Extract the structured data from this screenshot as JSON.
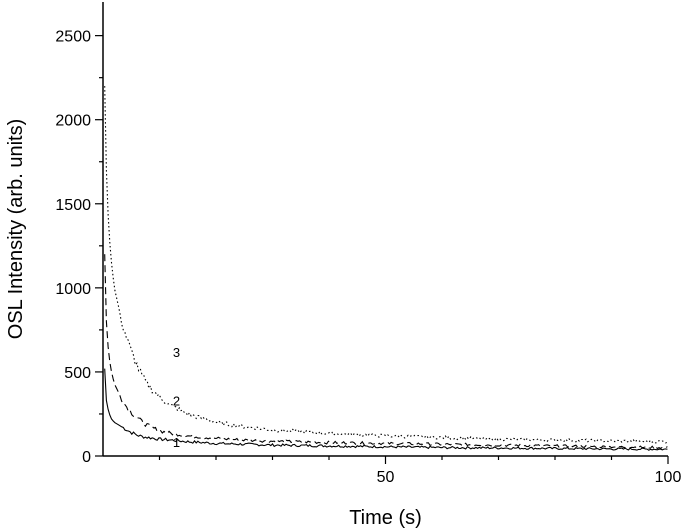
{
  "chart_data": {
    "type": "line",
    "xlabel": "Time (s)",
    "ylabel": "OSL Intensity (arb. units)",
    "xlim": [
      0,
      100
    ],
    "ylim": [
      0,
      2700
    ],
    "x_ticks": [
      50,
      100
    ],
    "x_tick_labels": [
      "50",
      "100"
    ],
    "y_ticks": [
      0,
      500,
      1000,
      1500,
      2000,
      2500
    ],
    "y_tick_labels": [
      "0",
      "500",
      "1000",
      "1500",
      "2000",
      "2500"
    ],
    "grid": false,
    "legend": "none",
    "series": [
      {
        "label": "1",
        "style": "solid",
        "label_at": [
          13,
          55
        ],
        "x": [
          0.3,
          0.6,
          1,
          1.5,
          2,
          3,
          4,
          5,
          6,
          7,
          8,
          10,
          12,
          15,
          20,
          25,
          30,
          40,
          50,
          60,
          70,
          80,
          90,
          100
        ],
        "y": [
          520,
          330,
          260,
          220,
          200,
          180,
          160,
          140,
          125,
          115,
          110,
          100,
          95,
          85,
          75,
          70,
          65,
          60,
          55,
          50,
          48,
          45,
          42,
          40
        ]
      },
      {
        "label": "2",
        "style": "dashed",
        "label_at": [
          13,
          300
        ],
        "x": [
          0.3,
          0.6,
          1,
          1.5,
          2,
          3,
          4,
          5,
          6,
          7,
          8,
          10,
          12,
          15,
          20,
          25,
          30,
          40,
          50,
          60,
          70,
          80,
          90,
          100
        ],
        "y": [
          1200,
          800,
          600,
          500,
          430,
          360,
          300,
          260,
          230,
          200,
          180,
          150,
          135,
          120,
          105,
          95,
          88,
          80,
          75,
          70,
          65,
          60,
          55,
          50
        ]
      },
      {
        "label": "3",
        "style": "dotted",
        "label_at": [
          13,
          590
        ],
        "x": [
          0.3,
          0.6,
          1,
          1.5,
          2,
          3,
          4,
          5,
          6,
          7,
          8,
          10,
          12,
          15,
          20,
          25,
          30,
          40,
          50,
          60,
          70,
          80,
          90,
          100
        ],
        "y": [
          2200,
          1700,
          1350,
          1150,
          1000,
          850,
          720,
          620,
          540,
          470,
          420,
          350,
          300,
          250,
          200,
          175,
          155,
          135,
          120,
          110,
          100,
          95,
          90,
          85
        ]
      }
    ]
  }
}
